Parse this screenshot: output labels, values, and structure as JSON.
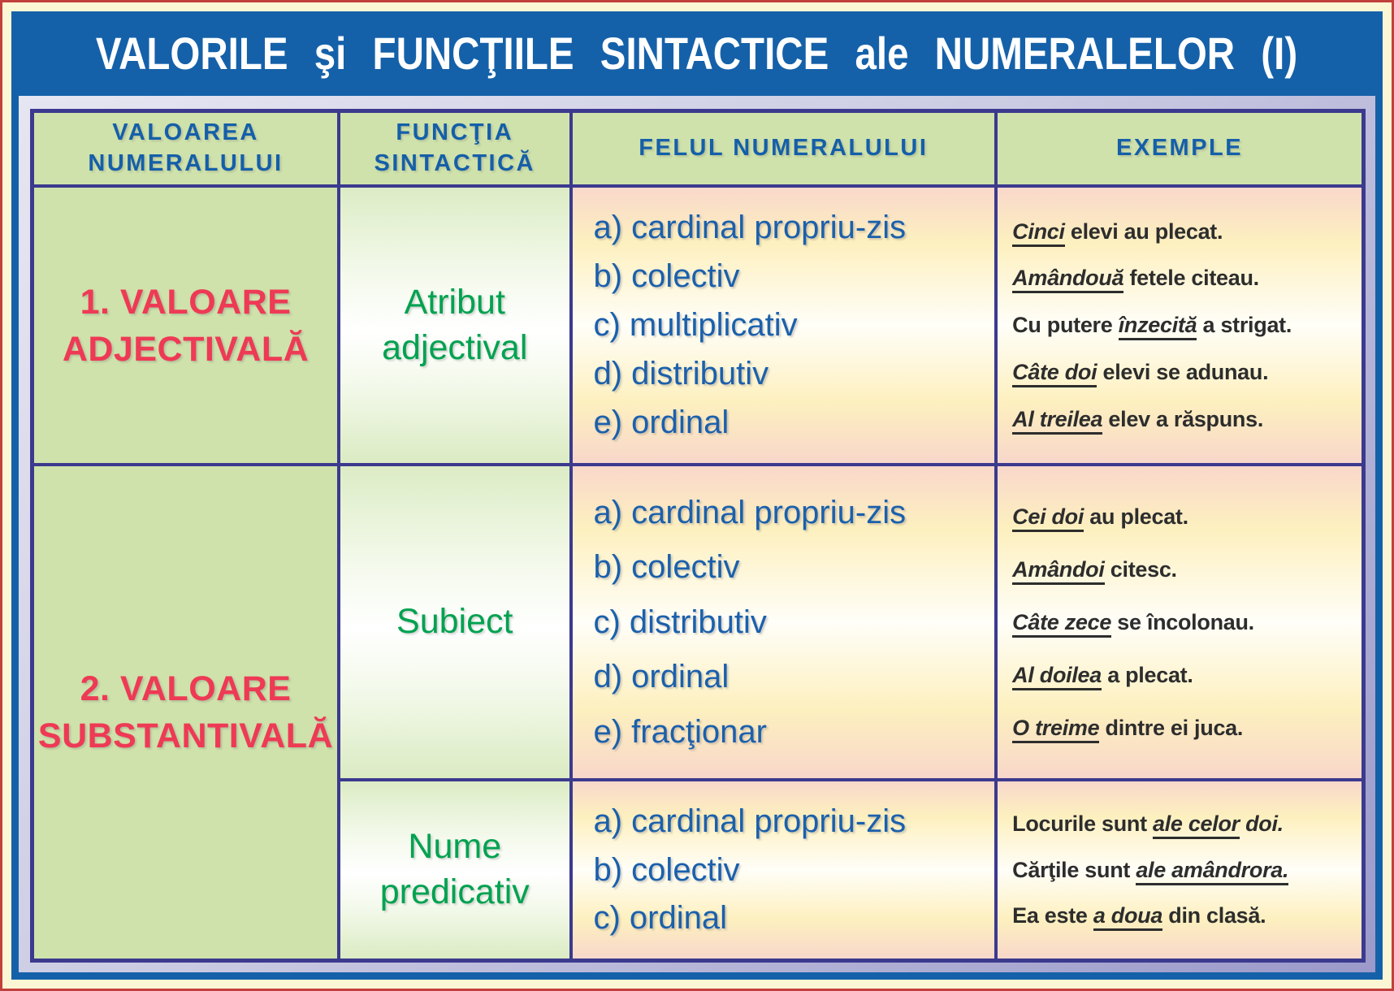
{
  "poster": {
    "title": "VALORILE şi FUNCŢIILE SINTACTICE ale NUMERALELOR (I)"
  },
  "table": {
    "headers": [
      "VALOAREA NUMERALULUI",
      "FUNCŢIA SINTACTICĂ",
      "FELUL NUMERALULUI",
      "EXEMPLE"
    ],
    "groups": [
      {
        "value": "1. VALOARE ADJECTIVALĂ",
        "entries": [
          {
            "function": "Atribut adjectival",
            "kinds": [
              "a) cardinal propriu-zis",
              "b) colectiv",
              "c) multiplicativ",
              "d) distributiv",
              "e) ordinal"
            ],
            "examples": [
              [
                {
                  "t": "Cinci",
                  "s": "u"
                },
                {
                  "t": " elevi au plecat.",
                  "s": "n"
                }
              ],
              [
                {
                  "t": "Amândouă",
                  "s": "u"
                },
                {
                  "t": " fetele citeau.",
                  "s": "n"
                }
              ],
              [
                {
                  "t": "Cu putere ",
                  "s": "n"
                },
                {
                  "t": "înzecită",
                  "s": "u"
                },
                {
                  "t": " a strigat.",
                  "s": "n"
                }
              ],
              [
                {
                  "t": "Câte doi",
                  "s": "u"
                },
                {
                  "t": " elevi se adunau.",
                  "s": "n"
                }
              ],
              [
                {
                  "t": "Al treilea",
                  "s": "u"
                },
                {
                  "t": " elev a răspuns.",
                  "s": "n"
                }
              ]
            ]
          }
        ]
      },
      {
        "value": "2. VALOARE SUBSTANTIVALĂ",
        "entries": [
          {
            "function": "Subiect",
            "kinds": [
              "a) cardinal propriu-zis",
              "b) colectiv",
              "c) distributiv",
              "d) ordinal",
              "e) fracţionar"
            ],
            "examples": [
              [
                {
                  "t": "Cei doi",
                  "s": "u"
                },
                {
                  "t": " au plecat.",
                  "s": "n"
                }
              ],
              [
                {
                  "t": "Amândoi",
                  "s": "u"
                },
                {
                  "t": " citesc.",
                  "s": "n"
                }
              ],
              [
                {
                  "t": "Câte zece",
                  "s": "u"
                },
                {
                  "t": " se încolonau.",
                  "s": "n"
                }
              ],
              [
                {
                  "t": "Al doilea",
                  "s": "u"
                },
                {
                  "t": " a plecat.",
                  "s": "n"
                }
              ],
              [
                {
                  "t": "O treime",
                  "s": "u"
                },
                {
                  "t": " dintre ei juca.",
                  "s": "n"
                }
              ]
            ]
          },
          {
            "function": "Nume predicativ",
            "kinds": [
              "a) cardinal propriu-zis",
              "b) colectiv",
              "c) ordinal"
            ],
            "examples": [
              [
                {
                  "t": "Locurile sunt ",
                  "s": "n"
                },
                {
                  "t": "ale celor",
                  "s": "u"
                },
                {
                  "t": " doi.",
                  "s": "i"
                }
              ],
              [
                {
                  "t": "Cărţile sunt ",
                  "s": "n"
                },
                {
                  "t": "ale amândrora.",
                  "s": "u"
                }
              ],
              [
                {
                  "t": "Ea este ",
                  "s": "n"
                },
                {
                  "t": "a doua",
                  "s": "u"
                },
                {
                  "t": " din clasă.",
                  "s": "n"
                }
              ]
            ]
          }
        ]
      }
    ]
  },
  "colors": {
    "frame_blue": "#1561a9",
    "border_purple": "#3c3a8e",
    "header_blue": "#155fa9",
    "value_red": "#ee3a55",
    "function_green": "#00a250",
    "kind_blue": "#1b60ac",
    "cell_green": "#cfe2ab",
    "page_cream": "#fbf7d5",
    "page_border_red": "#c2403c"
  }
}
